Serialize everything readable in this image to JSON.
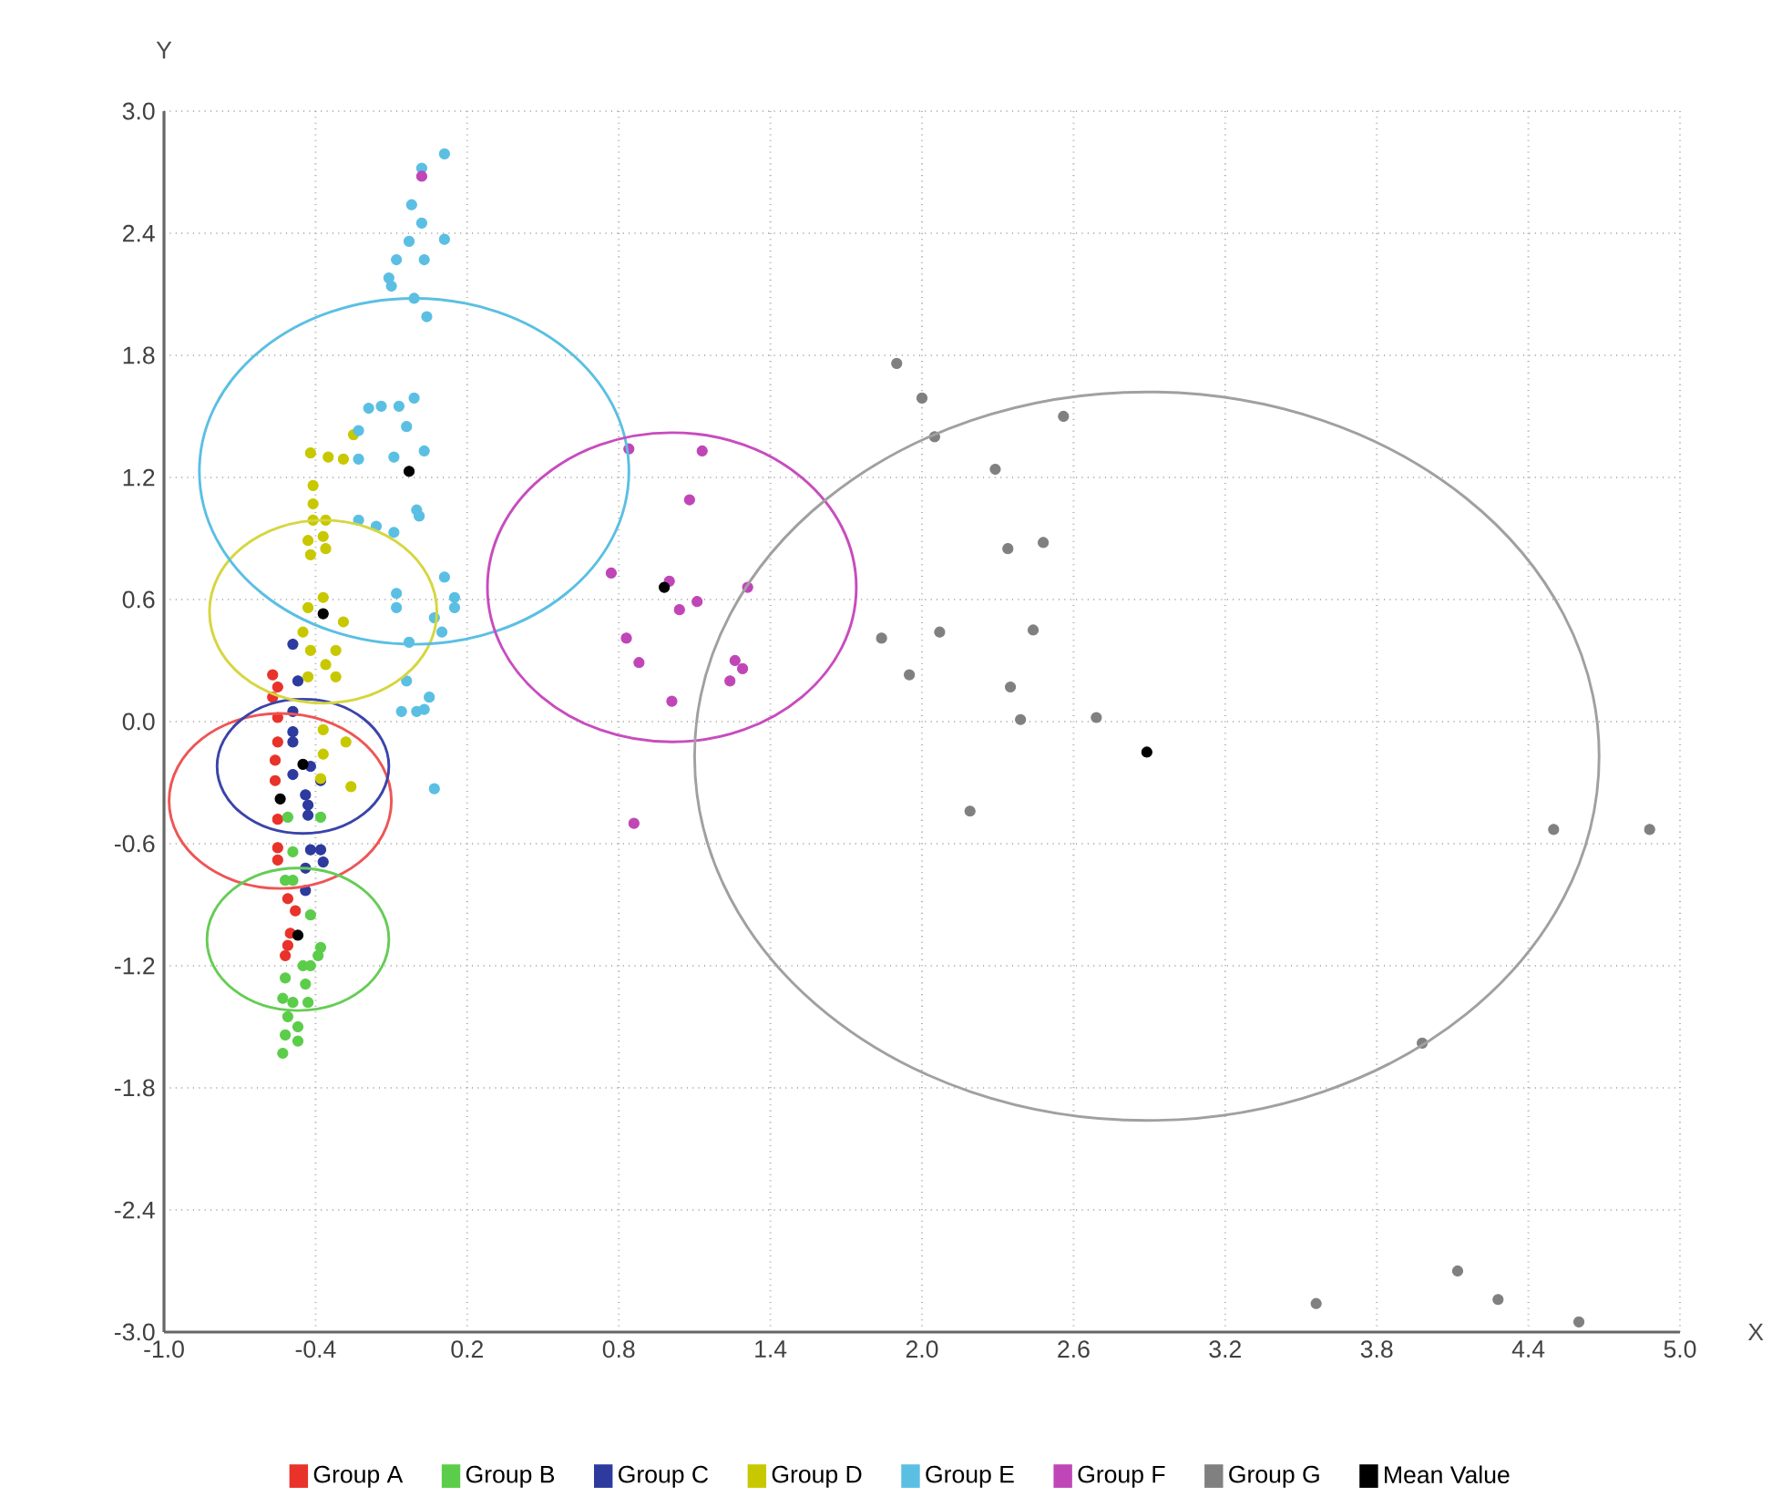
{
  "chart_data": {
    "type": "scatter",
    "xlabel": "X",
    "ylabel": "Y",
    "grid": true,
    "legend": "bottom",
    "xlim": [
      -1.0,
      5.0
    ],
    "ylim": [
      -3.0,
      3.0
    ],
    "xticks": [
      {
        "value": -1.0,
        "label": "-1.0"
      },
      {
        "value": -0.4,
        "label": "-0.4"
      },
      {
        "value": 0.2,
        "label": "0.2"
      },
      {
        "value": 0.8,
        "label": "0.8"
      },
      {
        "value": 1.4,
        "label": "1.4"
      },
      {
        "value": 2.0,
        "label": "2.0"
      },
      {
        "value": 2.6,
        "label": "2.6"
      },
      {
        "value": 3.2,
        "label": "3.2"
      },
      {
        "value": 3.8,
        "label": "3.8"
      },
      {
        "value": 4.4,
        "label": "4.4"
      },
      {
        "value": 5.0,
        "label": "5.0"
      }
    ],
    "yticks": [
      {
        "value": -3.0,
        "label": "-3.0"
      },
      {
        "value": -2.4,
        "label": "-2.4"
      },
      {
        "value": -1.8,
        "label": "-1.8"
      },
      {
        "value": -1.2,
        "label": "-1.2"
      },
      {
        "value": -0.6,
        "label": "-0.6"
      },
      {
        "value": 0.0,
        "label": "0.0"
      },
      {
        "value": 0.6,
        "label": "0.6"
      },
      {
        "value": 1.2,
        "label": "1.2"
      },
      {
        "value": 1.8,
        "label": "1.8"
      },
      {
        "value": 2.4,
        "label": "2.4"
      },
      {
        "value": 3.0,
        "label": "3.0"
      }
    ],
    "series": [
      {
        "name": "Group A",
        "color": "#e8322a",
        "x": [
          -0.57,
          -0.55,
          -0.57,
          -0.55,
          -0.55,
          -0.56,
          -0.56,
          -0.55,
          -0.55,
          -0.55,
          -0.51,
          -0.48,
          -0.5,
          -0.51,
          -0.52
        ],
        "values": [
          0.23,
          0.17,
          0.12,
          0.02,
          -0.1,
          -0.19,
          -0.29,
          -0.48,
          -0.62,
          -0.68,
          -0.87,
          -0.93,
          -1.04,
          -1.1,
          -1.15
        ]
      },
      {
        "name": "Group B",
        "color": "#5ccd4a",
        "x": [
          -0.51,
          -0.38,
          -0.49,
          -0.52,
          -0.49,
          -0.42,
          -0.38,
          -0.39,
          -0.45,
          -0.42,
          -0.52,
          -0.44,
          -0.53,
          -0.49,
          -0.43,
          -0.51,
          -0.47,
          -0.52,
          -0.47,
          -0.53
        ],
        "values": [
          -0.47,
          -0.47,
          -0.64,
          -0.78,
          -0.78,
          -0.95,
          -1.11,
          -1.15,
          -1.2,
          -1.2,
          -1.26,
          -1.29,
          -1.36,
          -1.38,
          -1.38,
          -1.45,
          -1.5,
          -1.54,
          -1.57,
          -1.63
        ]
      },
      {
        "name": "Group C",
        "color": "#2d3a9e",
        "x": [
          -0.49,
          -0.47,
          -0.49,
          -0.49,
          -0.49,
          -0.42,
          -0.49,
          -0.38,
          -0.44,
          -0.43,
          -0.43,
          -0.42,
          -0.38,
          -0.37,
          -0.44,
          -0.44
        ],
        "values": [
          0.38,
          0.2,
          0.05,
          -0.05,
          -0.1,
          -0.22,
          -0.26,
          -0.29,
          -0.36,
          -0.41,
          -0.46,
          -0.63,
          -0.63,
          -0.69,
          -0.72,
          -0.83
        ]
      },
      {
        "name": "Group D",
        "color": "#c8c800",
        "x": [
          -0.25,
          -0.42,
          -0.35,
          -0.29,
          -0.41,
          -0.41,
          -0.41,
          -0.36,
          -0.37,
          -0.43,
          -0.36,
          -0.42,
          -0.43,
          -0.37,
          -0.29,
          -0.45,
          -0.42,
          -0.32,
          -0.36,
          -0.32,
          -0.43,
          -0.37,
          -0.28,
          -0.37,
          -0.26,
          -0.38
        ],
        "values": [
          1.41,
          1.32,
          1.3,
          1.29,
          1.16,
          1.07,
          0.99,
          0.99,
          0.91,
          0.89,
          0.85,
          0.82,
          0.56,
          0.61,
          0.49,
          0.44,
          0.35,
          0.35,
          0.28,
          0.22,
          0.22,
          -0.04,
          -0.1,
          -0.16,
          -0.32,
          -0.28
        ]
      },
      {
        "name": "Group E",
        "color": "#5bbfe3",
        "x": [
          0.11,
          0.02,
          -0.02,
          0.02,
          0.11,
          -0.03,
          -0.08,
          0.03,
          -0.11,
          -0.1,
          -0.01,
          0.04,
          -0.19,
          -0.14,
          -0.07,
          -0.01,
          -0.23,
          -0.04,
          0.03,
          -0.23,
          -0.09,
          0.0,
          0.01,
          -0.23,
          -0.16,
          -0.09,
          0.11,
          -0.08,
          -0.08,
          0.07,
          0.15,
          0.15,
          -0.03,
          0.1,
          -0.04,
          0.05,
          -0.06,
          0.0,
          0.03,
          0.07
        ],
        "values": [
          2.79,
          2.72,
          2.54,
          2.45,
          2.37,
          2.36,
          2.27,
          2.27,
          2.18,
          2.14,
          2.08,
          1.99,
          1.54,
          1.55,
          1.55,
          1.59,
          1.43,
          1.45,
          1.33,
          1.29,
          1.3,
          1.04,
          1.01,
          0.99,
          0.96,
          0.93,
          0.71,
          0.63,
          0.56,
          0.51,
          0.61,
          0.56,
          0.39,
          0.44,
          0.2,
          0.12,
          0.05,
          0.05,
          0.06,
          -0.33
        ]
      },
      {
        "name": "Group F",
        "color": "#c046b8",
        "x": [
          0.02,
          0.84,
          1.13,
          1.08,
          0.77,
          1.0,
          1.11,
          1.04,
          1.31,
          0.83,
          0.88,
          1.26,
          1.29,
          1.24,
          1.01,
          0.86
        ],
        "values": [
          2.68,
          1.34,
          1.33,
          1.09,
          0.73,
          0.69,
          0.59,
          0.55,
          0.66,
          0.41,
          0.29,
          0.3,
          0.26,
          0.2,
          0.1,
          -0.5
        ]
      },
      {
        "name": "Group G",
        "color": "#808080",
        "x": [
          1.9,
          2.0,
          2.05,
          2.29,
          2.56,
          2.34,
          2.48,
          1.84,
          2.07,
          2.44,
          1.95,
          2.35,
          2.39,
          2.69,
          2.19,
          4.5,
          4.88,
          3.98,
          3.56,
          4.12,
          4.28,
          4.6
        ],
        "values": [
          1.76,
          1.59,
          1.4,
          1.24,
          1.5,
          0.85,
          0.88,
          0.41,
          0.44,
          0.45,
          0.23,
          0.17,
          0.01,
          0.02,
          -0.44,
          -0.53,
          -0.53,
          -1.58,
          -2.86,
          -2.7,
          -2.84,
          -2.95
        ]
      },
      {
        "name": "Mean Value",
        "color": "#000000",
        "x": [
          -0.54,
          -0.47,
          -0.45,
          -0.37,
          -0.03,
          0.98,
          2.89
        ],
        "values": [
          -0.38,
          -1.05,
          -0.21,
          0.53,
          1.23,
          0.66,
          -0.15
        ]
      }
    ]
  }
}
